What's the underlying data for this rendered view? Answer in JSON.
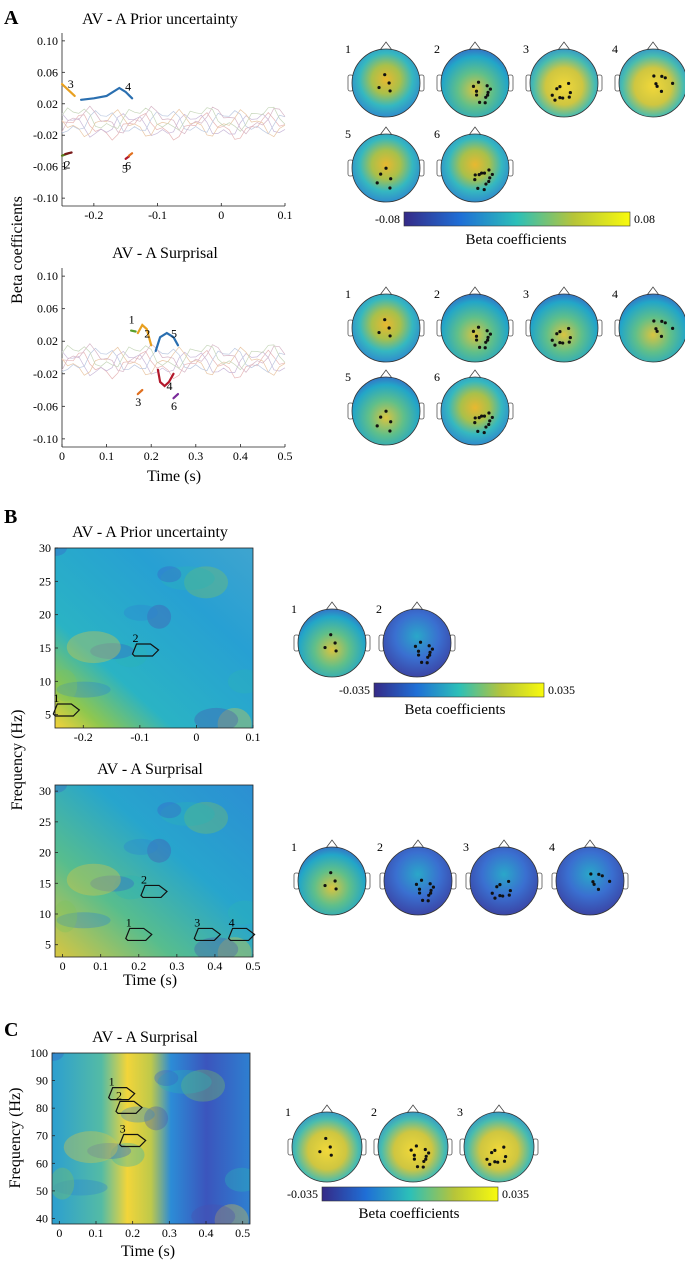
{
  "panels": {
    "A": {
      "label": "A",
      "ylabel": "Beta coefficients",
      "xlabel": "Time (s)",
      "colorbar": {
        "min_label": "-0.08",
        "max_label": "0.08",
        "label": "Beta coefficients"
      }
    },
    "B": {
      "label": "B",
      "ylabel": "Frequency (Hz)",
      "xlabel": "Time (s)",
      "colorbar": {
        "min_label": "-0.035",
        "max_label": "0.035",
        "label": "Beta coefficients"
      }
    },
    "C": {
      "label": "C",
      "ylabel": "Frequency (Hz)",
      "xlabel": "Time (s)",
      "colorbar": {
        "min_label": "-0.035",
        "max_label": "0.035",
        "label": "Beta coefficients"
      }
    }
  },
  "chart_data": [
    {
      "id": "A1",
      "type": "line",
      "title": "AV - A Prior uncertainty",
      "xlabel": "",
      "ylabel": "Beta coefficients",
      "xlim": [
        -0.25,
        0.1
      ],
      "ylim": [
        -0.11,
        0.11
      ],
      "xticks": [
        "-0.2",
        "-0.1",
        "0",
        "0.1"
      ],
      "xtick_values": [
        -0.2,
        -0.1,
        0,
        0.1
      ],
      "yticks": [
        "0.10",
        "0.06",
        "0.02",
        "-0.02",
        "-0.06",
        "-0.10"
      ],
      "ytick_values": [
        0.1,
        0.06,
        0.02,
        -0.02,
        -0.06,
        -0.1
      ],
      "series": [
        {
          "name": "1",
          "color": "#5a7d1e",
          "x": [
            -0.25,
            -0.24
          ],
          "y": [
            -0.046,
            -0.043
          ]
        },
        {
          "name": "2",
          "color": "#7a1a1a",
          "x": [
            -0.245,
            -0.235
          ],
          "y": [
            -0.044,
            -0.042
          ]
        },
        {
          "name": "3",
          "color": "#e8a020",
          "x": [
            -0.25,
            -0.23
          ],
          "y": [
            0.045,
            0.03
          ]
        },
        {
          "name": "4",
          "color": "#2a6fb0",
          "x": [
            -0.22,
            -0.2,
            -0.18,
            -0.16,
            -0.15,
            -0.14
          ],
          "y": [
            0.025,
            0.027,
            0.03,
            0.04,
            0.035,
            0.027
          ]
        },
        {
          "name": "5",
          "color": "#b2182b",
          "x": [
            -0.15,
            -0.145
          ],
          "y": [
            -0.05,
            -0.047
          ]
        },
        {
          "name": "6",
          "color": "#e07020",
          "x": [
            -0.145,
            -0.14
          ],
          "y": [
            -0.046,
            -0.043
          ]
        }
      ],
      "annotations": [
        "1",
        "2",
        "3",
        "4",
        "5",
        "6"
      ]
    },
    {
      "id": "A2",
      "type": "line",
      "title": "AV - A Surprisal",
      "xlabel": "Time (s)",
      "ylabel": "Beta coefficients",
      "xlim": [
        0,
        0.5
      ],
      "ylim": [
        -0.11,
        0.11
      ],
      "xticks": [
        "0",
        "0.1",
        "0.2",
        "0.3",
        "0.4",
        "0.5"
      ],
      "xtick_values": [
        0,
        0.1,
        0.2,
        0.3,
        0.4,
        0.5
      ],
      "yticks": [
        "0.10",
        "0.06",
        "0.02",
        "-0.02",
        "-0.06",
        "-0.10"
      ],
      "ytick_values": [
        0.1,
        0.06,
        0.02,
        -0.02,
        -0.06,
        -0.1
      ],
      "series": [
        {
          "name": "1",
          "color": "#5a9e2a",
          "x": [
            0.155,
            0.165
          ],
          "y": [
            0.033,
            0.032
          ]
        },
        {
          "name": "2",
          "color": "#e8a020",
          "x": [
            0.17,
            0.18,
            0.19,
            0.2
          ],
          "y": [
            0.03,
            0.04,
            0.035,
            0.015
          ]
        },
        {
          "name": "3",
          "color": "#e07020",
          "x": [
            0.17,
            0.18
          ],
          "y": [
            -0.045,
            -0.04
          ]
        },
        {
          "name": "4",
          "color": "#b2182b",
          "x": [
            0.215,
            0.22,
            0.23,
            0.24,
            0.25
          ],
          "y": [
            -0.015,
            -0.03,
            -0.035,
            -0.03,
            -0.02
          ]
        },
        {
          "name": "5",
          "color": "#2a6fb0",
          "x": [
            0.21,
            0.22,
            0.235,
            0.25,
            0.26
          ],
          "y": [
            0.008,
            0.025,
            0.03,
            0.025,
            0.015
          ]
        },
        {
          "name": "6",
          "color": "#7a2a9a",
          "x": [
            0.25,
            0.26
          ],
          "y": [
            -0.05,
            -0.045
          ]
        }
      ],
      "annotations": [
        "1",
        "2",
        "3",
        "4",
        "5",
        "6"
      ]
    },
    {
      "id": "B1",
      "type": "heatmap",
      "title": "AV - A Prior uncertainty",
      "xlabel": "",
      "ylabel": "Frequency (Hz)",
      "xlim": [
        -0.25,
        0.1
      ],
      "ylim": [
        3,
        30
      ],
      "xticks": [
        "-0.2",
        "-0.1",
        "0",
        "0.1"
      ],
      "xtick_values": [
        -0.2,
        -0.1,
        0,
        0.1
      ],
      "yticks": [
        "30",
        "25",
        "20",
        "15",
        "10",
        "5"
      ],
      "ytick_values": [
        30,
        25,
        20,
        15,
        10,
        5
      ],
      "clusters": [
        {
          "label": "1",
          "t": -0.23,
          "f": 6
        },
        {
          "label": "2",
          "t": -0.09,
          "f": 15
        }
      ]
    },
    {
      "id": "B2",
      "type": "heatmap",
      "title": "AV - A Surprisal",
      "xlabel": "Time (s)",
      "ylabel": "Frequency (Hz)",
      "xlim": [
        -0.02,
        0.5
      ],
      "ylim": [
        3,
        31
      ],
      "xticks": [
        "0",
        "0.1",
        "0.2",
        "0.3",
        "0.4",
        "0.5"
      ],
      "xtick_values": [
        0,
        0.1,
        0.2,
        0.3,
        0.4,
        0.5
      ],
      "yticks": [
        "30",
        "25",
        "20",
        "15",
        "10",
        "5"
      ],
      "ytick_values": [
        30,
        25,
        20,
        15,
        10,
        5
      ],
      "clusters": [
        {
          "label": "1",
          "t": 0.2,
          "f": 7
        },
        {
          "label": "2",
          "t": 0.24,
          "f": 14
        },
        {
          "label": "3",
          "t": 0.38,
          "f": 7
        },
        {
          "label": "4",
          "t": 0.47,
          "f": 7
        }
      ]
    },
    {
      "id": "C",
      "type": "heatmap",
      "title": "AV - A Surprisal",
      "xlabel": "Time (s)",
      "ylabel": "Frequency (Hz)",
      "xlim": [
        -0.02,
        0.52
      ],
      "ylim": [
        38,
        100
      ],
      "xticks": [
        "0",
        "0.1",
        "0.2",
        "0.3",
        "0.4",
        "0.5"
      ],
      "xtick_values": [
        0,
        0.1,
        0.2,
        0.3,
        0.4,
        0.5
      ],
      "yticks": [
        "100",
        "90",
        "80",
        "70",
        "60",
        "50",
        "40"
      ],
      "ytick_values": [
        100,
        90,
        80,
        70,
        60,
        50,
        40
      ],
      "clusters": [
        {
          "label": "1",
          "t": 0.17,
          "f": 86
        },
        {
          "label": "2",
          "t": 0.19,
          "f": 81
        },
        {
          "label": "3",
          "t": 0.2,
          "f": 69
        }
      ]
    }
  ],
  "topomaps": {
    "A1": [
      "1",
      "2",
      "3",
      "4",
      "5",
      "6"
    ],
    "A2": [
      "1",
      "2",
      "3",
      "4",
      "5",
      "6"
    ],
    "B1": [
      "1",
      "2"
    ],
    "B2": [
      "1",
      "2",
      "3",
      "4"
    ],
    "C": [
      "1",
      "2",
      "3"
    ]
  },
  "colors": {
    "viridis_low": "#3e2f8f",
    "viridis_mid": "#19b3c7",
    "viridis_high": "#f5e520"
  }
}
